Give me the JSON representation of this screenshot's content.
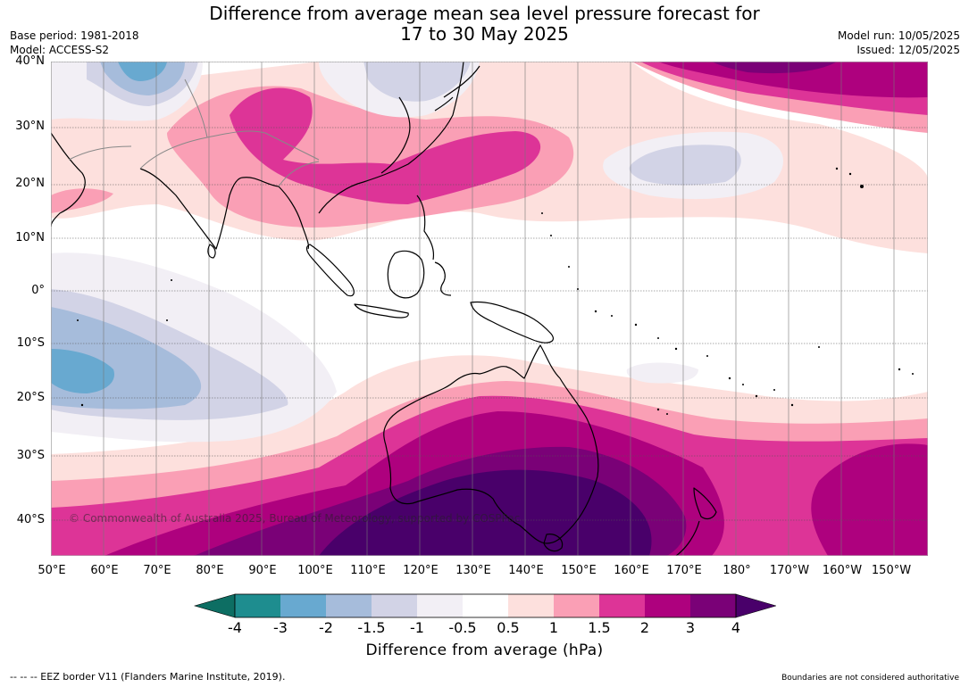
{
  "header": {
    "title_line1": "Difference from average mean sea level pressure forecast for",
    "title_line2": "17 to 30 May 2025",
    "base_period": "Base period: 1981-2018",
    "model": "Model: ACCESS-S2",
    "model_run": "Model run: 10/05/2025",
    "issued": "Issued: 12/05/2025"
  },
  "map": {
    "copyright": "© Commonwealth of Australia 2025, Bureau of Meteorology, supported by COSPPac",
    "lat_labels": [
      "40°N",
      "30°N",
      "20°N",
      "10°N",
      "0°",
      "10°S",
      "20°S",
      "30°S",
      "40°S"
    ],
    "lon_labels": [
      "50°E",
      "60°E",
      "70°E",
      "80°E",
      "90°E",
      "100°E",
      "110°E",
      "120°E",
      "130°E",
      "140°E",
      "150°E",
      "160°E",
      "170°E",
      "180°",
      "170°W",
      "160°W",
      "150°W"
    ]
  },
  "legend": {
    "title": "Difference from average (hPa)",
    "ticks": [
      "-4",
      "-3",
      "-2",
      "-1.5",
      "-1",
      "-0.5",
      "0.5",
      "1",
      "1.5",
      "2",
      "3",
      "4"
    ],
    "colors": [
      "#1e8d8f",
      "#68a9d0",
      "#a6bcdb",
      "#d2d3e6",
      "#f2eff5",
      "#ffffff",
      "#fde0dd",
      "#fa9fb5",
      "#dd3497",
      "#ae017e",
      "#7a0177",
      "#49006a"
    ],
    "under_color": "#0d6e63",
    "over_color": "#49006a"
  },
  "footer": {
    "eez": "--  --  -- EEZ border V11 (Flanders Marine Institute, 2019).",
    "boundaries": "Boundaries are not considered authoritative"
  }
}
